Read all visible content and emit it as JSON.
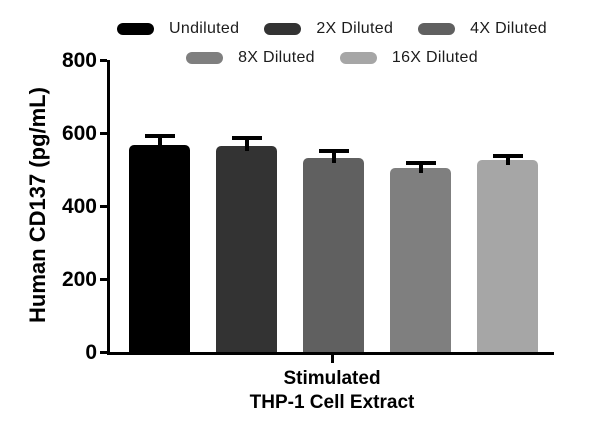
{
  "figure": {
    "background": "#ffffff",
    "axis_color": "#000000"
  },
  "chart_data": {
    "type": "bar",
    "title": "",
    "ylabel": "Human CD137 (pg/mL)",
    "xlabel_lines": [
      "Stimulated",
      "THP-1 Cell Extract"
    ],
    "categories": [
      "Undiluted",
      "2X Diluted",
      "4X Diluted",
      "8X Diluted",
      "16X Diluted"
    ],
    "values": [
      567,
      564,
      532,
      503,
      527
    ],
    "errors_plus": [
      24,
      23,
      18,
      16,
      10
    ],
    "bar_colors": [
      "#000000",
      "#333333",
      "#606060",
      "#7f7f7f",
      "#a6a6a6"
    ],
    "error_color": "#000000",
    "ylim": [
      0,
      800
    ],
    "yticks": [
      0,
      200,
      400,
      600,
      800
    ],
    "grid": false,
    "legend_position": "top",
    "legend_rows": [
      3,
      2
    ]
  }
}
